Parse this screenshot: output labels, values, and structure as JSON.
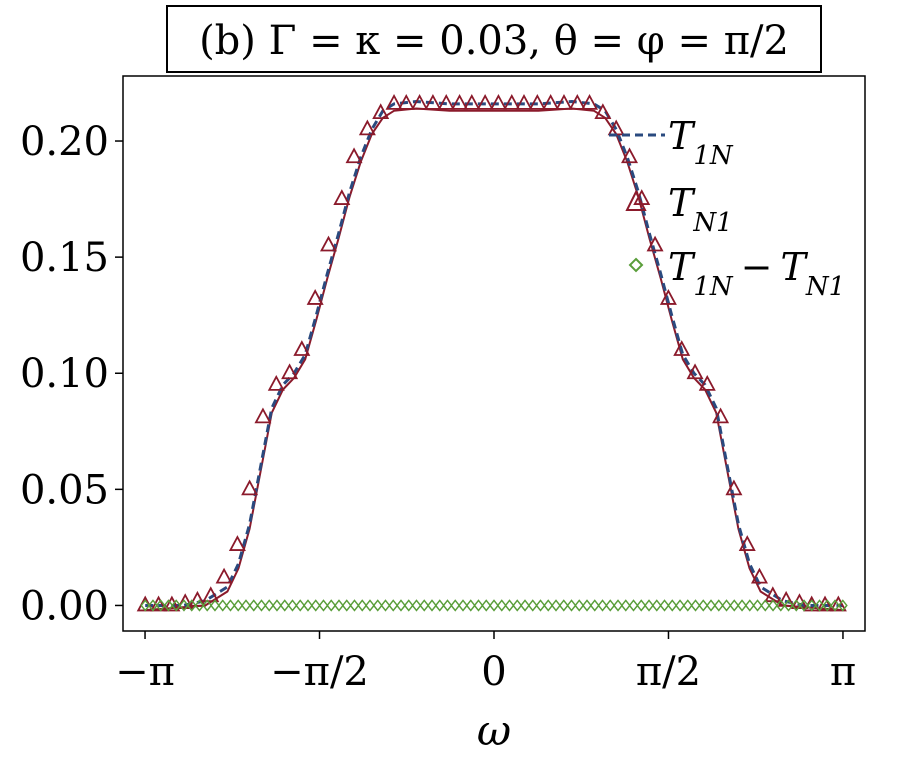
{
  "chart_data": {
    "type": "line",
    "title": "(b) Γ = κ = 0.03, θ = φ = π/2",
    "xlabel": "ω",
    "ylabel": "",
    "xlim": [
      -3.34,
      3.34
    ],
    "ylim": [
      -0.011,
      0.228
    ],
    "x_ticks": [
      {
        "value": -3.14159,
        "label": "−π"
      },
      {
        "value": -1.5708,
        "label": "−π/2"
      },
      {
        "value": 0,
        "label": "0"
      },
      {
        "value": 1.5708,
        "label": "π/2"
      },
      {
        "value": 3.14159,
        "label": "π"
      }
    ],
    "y_ticks": [
      {
        "value": 0.0,
        "label": "0.00"
      },
      {
        "value": 0.05,
        "label": "0.05"
      },
      {
        "value": 0.1,
        "label": "0.10"
      },
      {
        "value": 0.15,
        "label": "0.15"
      },
      {
        "value": 0.2,
        "label": "0.20"
      }
    ],
    "grid": false,
    "legend_position": "top-right",
    "series": [
      {
        "name": "T_1N",
        "label_main": "T",
        "label_sub": "1N",
        "style": "dashed-line",
        "color": "#2a4a7f",
        "x": [
          -3.14,
          -2.8,
          -2.6,
          -2.4,
          -2.3,
          -2.2,
          -2.1,
          -2.0,
          -1.9,
          -1.8,
          -1.7,
          -1.6,
          -1.5,
          -1.4,
          -1.3,
          -1.2,
          -1.1,
          -1.0,
          -0.9,
          -0.7,
          -0.4,
          0.0,
          0.4,
          0.7,
          0.9,
          1.0,
          1.1,
          1.2,
          1.3,
          1.4,
          1.5,
          1.6,
          1.7,
          1.8,
          1.9,
          2.0,
          2.1,
          2.2,
          2.3,
          2.4,
          2.6,
          2.8,
          3.14
        ],
        "y": [
          0.0,
          0.0,
          0.002,
          0.008,
          0.018,
          0.035,
          0.06,
          0.085,
          0.095,
          0.1,
          0.108,
          0.125,
          0.143,
          0.16,
          0.178,
          0.193,
          0.205,
          0.213,
          0.216,
          0.217,
          0.216,
          0.216,
          0.216,
          0.217,
          0.216,
          0.213,
          0.205,
          0.193,
          0.178,
          0.16,
          0.143,
          0.125,
          0.108,
          0.1,
          0.095,
          0.085,
          0.06,
          0.035,
          0.018,
          0.008,
          0.002,
          0.0,
          0.0
        ]
      },
      {
        "name": "T_N1",
        "label_main": "T",
        "label_sub": "N1",
        "style": "triangle-markers",
        "color": "#8b1a2b",
        "x": [
          -3.14,
          -3.02,
          -2.9,
          -2.78,
          -2.67,
          -2.55,
          -2.43,
          -2.31,
          -2.2,
          -2.08,
          -1.96,
          -1.84,
          -1.73,
          -1.61,
          -1.49,
          -1.37,
          -1.26,
          -1.14,
          -1.02,
          -0.9,
          -0.79,
          -0.67,
          -0.55,
          -0.43,
          -0.31,
          -0.2,
          -0.08,
          0.04,
          0.16,
          0.27,
          0.39,
          0.51,
          0.63,
          0.75,
          0.86,
          0.98,
          1.1,
          1.22,
          1.33,
          1.45,
          1.57,
          1.69,
          1.81,
          1.92,
          2.04,
          2.16,
          2.28,
          2.39,
          2.51,
          2.63,
          2.75,
          2.86,
          2.98,
          3.1
        ],
        "y": [
          0.0,
          0.0,
          0.0,
          0.001,
          0.002,
          0.004,
          0.012,
          0.026,
          0.05,
          0.081,
          0.095,
          0.1,
          0.11,
          0.132,
          0.155,
          0.175,
          0.193,
          0.205,
          0.212,
          0.216,
          0.216,
          0.216,
          0.216,
          0.216,
          0.216,
          0.216,
          0.216,
          0.216,
          0.216,
          0.216,
          0.216,
          0.216,
          0.216,
          0.216,
          0.216,
          0.212,
          0.205,
          0.193,
          0.175,
          0.155,
          0.132,
          0.11,
          0.1,
          0.095,
          0.081,
          0.05,
          0.026,
          0.012,
          0.004,
          0.002,
          0.001,
          0.0,
          0.0,
          0.0
        ]
      },
      {
        "name": "T_1N − T_N1",
        "label_main": "T",
        "label_sub": "1N",
        "label_minus": "−",
        "label_main2": "T",
        "label_sub2": "N1",
        "style": "diamond-markers",
        "color": "#5a9e3a",
        "x_start": -3.14,
        "x_end": 3.14,
        "count": 91,
        "y_constant": 0.0
      }
    ],
    "solid_outline": {
      "color": "#8b1a2b",
      "x": [
        -3.14,
        -2.6,
        -2.4,
        -2.3,
        -2.2,
        -2.1,
        -2.0,
        -1.9,
        -1.8,
        -1.7,
        -1.6,
        -1.5,
        -1.4,
        -1.3,
        -1.2,
        -1.1,
        -1.0,
        -0.9,
        -0.7,
        -0.4,
        0.0,
        0.4,
        0.7,
        0.9,
        1.0,
        1.1,
        1.2,
        1.3,
        1.4,
        1.5,
        1.6,
        1.7,
        1.8,
        1.9,
        2.0,
        2.1,
        2.2,
        2.3,
        2.4,
        2.6,
        3.14
      ],
      "y": [
        -0.002,
        0.0,
        0.006,
        0.016,
        0.033,
        0.058,
        0.083,
        0.093,
        0.098,
        0.106,
        0.123,
        0.141,
        0.158,
        0.176,
        0.191,
        0.203,
        0.21,
        0.213,
        0.214,
        0.213,
        0.213,
        0.213,
        0.214,
        0.213,
        0.21,
        0.203,
        0.191,
        0.176,
        0.158,
        0.141,
        0.123,
        0.106,
        0.098,
        0.093,
        0.083,
        0.058,
        0.033,
        0.016,
        0.006,
        0.0,
        -0.002
      ]
    }
  }
}
